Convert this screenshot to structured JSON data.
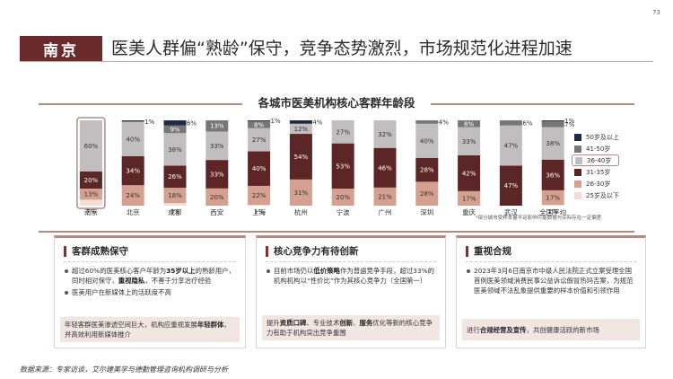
{
  "page_number": "73",
  "header": {
    "city": "南京",
    "title": "医美人群偏“熟龄”保守，竞争态势激烈，市场规范化进程加速"
  },
  "chart_data": {
    "type": "bar",
    "stacked": true,
    "percent_stacked": true,
    "title": "各城市医美机构核心客群年龄段",
    "categories": [
      "南京",
      "北京",
      "成都",
      "西安",
      "上海",
      "杭州",
      "宁波",
      "广州",
      "深圳",
      "重庆",
      "武汉",
      "全国平均"
    ],
    "series": [
      {
        "name": "25岁及以下",
        "color": "#f3ded6",
        "values": [
          7,
          0,
          3,
          0,
          1,
          0,
          0,
          0,
          0,
          0,
          0,
          1
        ]
      },
      {
        "name": "26-30岁",
        "color": "#d4a08f",
        "values": [
          13,
          24,
          18,
          20,
          22,
          31,
          20,
          21,
          28,
          17,
          0,
          17
        ]
      },
      {
        "name": "31-35岁",
        "color": "#5c2526",
        "values": [
          20,
          34,
          26,
          33,
          40,
          54,
          53,
          46,
          28,
          42,
          47,
          36
        ]
      },
      {
        "name": "36-40岁",
        "color": "#c2bebf",
        "values": [
          60,
          40,
          38,
          33,
          27,
          12,
          27,
          32,
          40,
          33,
          47,
          38
        ]
      },
      {
        "name": "41-50岁",
        "color": "#777777",
        "values": [
          0,
          1,
          9,
          13,
          8,
          0,
          0,
          0,
          4,
          8,
          6,
          7
        ]
      },
      {
        "name": "50岁及以上",
        "color": "#1f2a44",
        "values": [
          0,
          1,
          6,
          0,
          1,
          4,
          0,
          0,
          0,
          0,
          0,
          1
        ]
      }
    ],
    "labels": [
      {
        "city": "南京",
        "25岁及以下": "7%",
        "26-30岁": "13%",
        "31-35岁": "20%",
        "36-40岁": "60%"
      },
      {
        "city": "北京",
        "26-30岁": "24%",
        "31-35岁": "34%",
        "36-40岁": "40%",
        "41-50岁": "1%"
      },
      {
        "city": "成都",
        "25岁及以下": "3%",
        "26-30岁": "18%",
        "31-35岁": "26%",
        "36-40岁": "38%",
        "41-50岁": "9%",
        "50岁及以上": "6%"
      },
      {
        "city": "西安",
        "26-30岁": "20%",
        "31-35岁": "33%",
        "36-40岁": "33%",
        "41-50岁": "13%"
      },
      {
        "city": "上海",
        "25岁及以下": "1%",
        "26-30岁": "22%",
        "31-35岁": "40%",
        "36-40岁": "27%",
        "41-50岁": "8%",
        "50岁及以上": "1%"
      },
      {
        "city": "杭州",
        "26-30岁": "31%",
        "31-35岁": "54%",
        "36-40岁": "12%",
        "50岁及以上": "4%"
      },
      {
        "city": "宁波",
        "26-30岁": "20%",
        "31-35岁": "53%",
        "36-40岁": "27%"
      },
      {
        "city": "广州",
        "26-30岁": "21%",
        "31-35岁": "46%",
        "36-40岁": "32%"
      },
      {
        "city": "深圳",
        "26-30岁": "28%",
        "31-35岁": "28%",
        "36-40岁": "40%",
        "41-50岁": "4%"
      },
      {
        "city": "重庆",
        "26-30岁": "17%",
        "31-35岁": "42%",
        "36-40岁": "33%",
        "41-50岁": "8%"
      },
      {
        "city": "武汉",
        "31-35岁": "47%",
        "36-40岁": "47%",
        "41-50岁": "6%"
      },
      {
        "city": "全国平均",
        "25岁及以下": "1%",
        "26-30岁": "17%",
        "31-35岁": "36%",
        "36-40岁": "38%",
        "41-50岁": "7%",
        "50岁及以上": "1%"
      }
    ],
    "legend_order": [
      "50岁及以上",
      "41-50岁",
      "36-40岁",
      "31-35岁",
      "26-30岁",
      "25岁及以下"
    ],
    "legend_highlight": "36-40岁",
    "legend_position": "right",
    "highlight_category": "南京",
    "footnote": "*部分城市受样本量不足影响可能数据与实际存在一定偏差"
  },
  "cards": [
    {
      "title": "客群成熟保守",
      "bullets": [
        {
          "parts": [
            {
              "text": "超过60%的医美核心客户年龄为",
              "bold": false
            },
            {
              "text": "35岁以上",
              "bold": true
            },
            {
              "text": "的熟龄用户，同时相对保守，",
              "bold": false
            },
            {
              "text": "重视隐私",
              "bold": true
            },
            {
              "text": "，不善于分享治疗经验",
              "bold": false
            }
          ]
        },
        {
          "parts": [
            {
              "text": "医美用户在新媒体上的活跃度不高",
              "bold": false
            }
          ]
        }
      ],
      "footer_parts": [
        {
          "text": "年轻客群医美渗透空间巨大，机构应重视发展",
          "bold": false
        },
        {
          "text": "年轻群体",
          "bold": true
        },
        {
          "text": "，并高效利用新媒体推介",
          "bold": false
        }
      ]
    },
    {
      "title": "核心竞争力有待创新",
      "bullets": [
        {
          "parts": [
            {
              "text": "目前市场仍以",
              "bold": false
            },
            {
              "text": "低价策略",
              "bold": true
            },
            {
              "text": "作为普遍竞争手段，超过33%的机构机构以“性价比”作为其核心竞争力（全国第一）",
              "bold": false
            }
          ]
        }
      ],
      "footer_parts": [
        {
          "text": "提升",
          "bold": false
        },
        {
          "text": "资质口碑",
          "bold": true
        },
        {
          "text": "、专业技术",
          "bold": false
        },
        {
          "text": "创新",
          "bold": true
        },
        {
          "text": "、",
          "bold": false
        },
        {
          "text": "服务",
          "bold": true
        },
        {
          "text": "优化等新的核心竞争力有助于机构突出竞争重围",
          "bold": false
        }
      ]
    },
    {
      "title": "重视合规",
      "bullets": [
        {
          "parts": [
            {
              "text": "2023年3月6日南京市中级人民法院正式立案受理全国首例医美领域消费民事公益诉讼假冒热玛吉案，为规范医美领域不法乱象提供重要的样本价值和引领作用",
              "bold": false
            }
          ]
        }
      ],
      "footer_parts": [
        {
          "text": "进行",
          "bold": false
        },
        {
          "text": "合规经营及宣传",
          "bold": true
        },
        {
          "text": "，共创健康活跃的新市场",
          "bold": false
        }
      ]
    }
  ],
  "source": "数据来源：专家访谈，艾尔建美学与德勤管理咨询机构调研与分析"
}
